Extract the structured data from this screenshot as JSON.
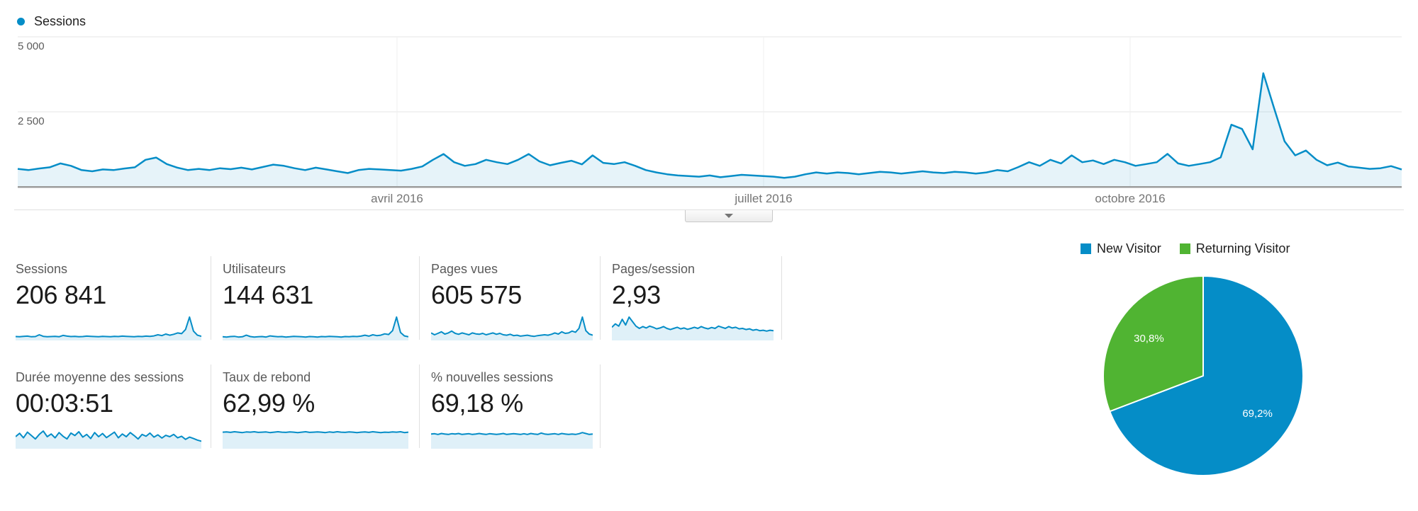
{
  "colors": {
    "blue": "#058dc7",
    "green": "#50b432",
    "area_fill": "rgba(5,141,199,0.10)",
    "spark_fill": "rgba(5,141,199,0.13)",
    "axis_line": "#9a9a9a",
    "gridline": "#e6e6e6",
    "v_gridline": "#efefef",
    "divider": "#e0e0e0",
    "pie_label_text": "#ffffff"
  },
  "timeline": {
    "legend_label": "Sessions",
    "y_axis_labels": [
      "5 000",
      "2 500"
    ],
    "x_axis_labels": [
      "avril 2016",
      "juillet 2016",
      "octobre 2016"
    ]
  },
  "expand_button": {
    "icon": "chevron-down-icon"
  },
  "cards": [
    {
      "label": "Sessions",
      "value": "206 841"
    },
    {
      "label": "Utilisateurs",
      "value": "144 631"
    },
    {
      "label": "Pages vues",
      "value": "605 575"
    },
    {
      "label": "Pages/session",
      "value": "2,93"
    },
    {
      "label": "Durée moyenne des sessions",
      "value": "00:03:51"
    },
    {
      "label": "Taux de rebond",
      "value": "62,99 %"
    },
    {
      "label": "% nouvelles sessions",
      "value": "69,18 %"
    }
  ],
  "pie_legend": [
    {
      "label": "New Visitor",
      "color": "#058dc7"
    },
    {
      "label": "Returning Visitor",
      "color": "#50b432"
    }
  ],
  "chart_data": [
    {
      "type": "area",
      "name": "sessions-over-time",
      "title": "Sessions",
      "ylim": [
        0,
        5000
      ],
      "y_ticks": [
        2500,
        5000
      ],
      "x_tick_labels": [
        "avril 2016",
        "juillet 2016",
        "octobre 2016"
      ],
      "grid": "on",
      "legend_position": "top-left",
      "series": [
        {
          "name": "Sessions",
          "values": [
            600,
            560,
            610,
            650,
            780,
            700,
            560,
            520,
            580,
            560,
            610,
            650,
            900,
            976,
            760,
            640,
            560,
            600,
            560,
            620,
            590,
            640,
            580,
            660,
            740,
            700,
            620,
            560,
            640,
            580,
            520,
            460,
            560,
            600,
            580,
            560,
            540,
            600,
            680,
            900,
            1095,
            820,
            700,
            760,
            900,
            820,
            760,
            900,
            1095,
            850,
            720,
            800,
            870,
            750,
            1050,
            800,
            760,
            820,
            700,
            560,
            480,
            420,
            380,
            360,
            340,
            380,
            320,
            360,
            400,
            380,
            360,
            340,
            300,
            340,
            420,
            480,
            440,
            480,
            460,
            420,
            460,
            500,
            480,
            440,
            480,
            520,
            480,
            460,
            500,
            480,
            440,
            480,
            560,
            520,
            660,
            820,
            700,
            900,
            780,
            1050,
            820,
            880,
            760,
            900,
            820,
            700,
            760,
            820,
            1100,
            780,
            700,
            760,
            820,
            980,
            2070,
            1930,
            1250,
            3785,
            2640,
            1520,
            1050,
            1210,
            900,
            720,
            810,
            680,
            640,
            600,
            620,
            690,
            580
          ]
        }
      ]
    },
    {
      "type": "pie",
      "name": "visitor-type",
      "legend_position": "top",
      "start_angle_deg": 0,
      "direction": "clockwise",
      "slices": [
        {
          "label": "New Visitor",
          "value": 69.2,
          "display": "69,2%",
          "color": "#058dc7"
        },
        {
          "label": "Returning Visitor",
          "value": 30.8,
          "display": "30,8%",
          "color": "#50b432"
        }
      ]
    },
    {
      "type": "area",
      "name": "spark-sessions",
      "metric": "Sessions",
      "values_norm": [
        0.14,
        0.13,
        0.15,
        0.16,
        0.13,
        0.14,
        0.22,
        0.15,
        0.13,
        0.14,
        0.15,
        0.13,
        0.19,
        0.16,
        0.14,
        0.15,
        0.13,
        0.14,
        0.16,
        0.15,
        0.14,
        0.13,
        0.15,
        0.14,
        0.13,
        0.15,
        0.14,
        0.16,
        0.15,
        0.14,
        0.13,
        0.15,
        0.14,
        0.16,
        0.15,
        0.17,
        0.22,
        0.18,
        0.25,
        0.2,
        0.24,
        0.3,
        0.27,
        0.45,
        1.0,
        0.38,
        0.2,
        0.15
      ]
    },
    {
      "type": "area",
      "name": "spark-utilisateurs",
      "metric": "Utilisateurs",
      "values_norm": [
        0.13,
        0.12,
        0.14,
        0.15,
        0.12,
        0.13,
        0.2,
        0.14,
        0.12,
        0.13,
        0.14,
        0.12,
        0.17,
        0.15,
        0.13,
        0.14,
        0.12,
        0.13,
        0.15,
        0.14,
        0.13,
        0.12,
        0.14,
        0.13,
        0.12,
        0.14,
        0.13,
        0.15,
        0.14,
        0.13,
        0.12,
        0.14,
        0.13,
        0.15,
        0.14,
        0.16,
        0.2,
        0.16,
        0.22,
        0.18,
        0.2,
        0.26,
        0.23,
        0.4,
        1.0,
        0.32,
        0.17,
        0.13
      ]
    },
    {
      "type": "area",
      "name": "spark-pages-vues",
      "metric": "Pages vues",
      "values_norm": [
        0.3,
        0.22,
        0.28,
        0.35,
        0.25,
        0.3,
        0.38,
        0.28,
        0.24,
        0.3,
        0.26,
        0.22,
        0.3,
        0.26,
        0.24,
        0.28,
        0.22,
        0.26,
        0.3,
        0.24,
        0.28,
        0.22,
        0.2,
        0.24,
        0.18,
        0.2,
        0.16,
        0.18,
        0.2,
        0.17,
        0.15,
        0.18,
        0.2,
        0.22,
        0.2,
        0.24,
        0.3,
        0.25,
        0.35,
        0.28,
        0.3,
        0.38,
        0.33,
        0.5,
        1.0,
        0.4,
        0.25,
        0.2
      ]
    },
    {
      "type": "area",
      "name": "spark-pages-session",
      "metric": "Pages/session",
      "values_norm": [
        0.55,
        0.7,
        0.6,
        0.9,
        0.65,
        1.0,
        0.8,
        0.6,
        0.5,
        0.58,
        0.52,
        0.6,
        0.55,
        0.48,
        0.52,
        0.58,
        0.5,
        0.45,
        0.5,
        0.55,
        0.48,
        0.52,
        0.46,
        0.5,
        0.55,
        0.5,
        0.58,
        0.52,
        0.48,
        0.54,
        0.5,
        0.6,
        0.55,
        0.5,
        0.58,
        0.52,
        0.55,
        0.48,
        0.5,
        0.45,
        0.48,
        0.42,
        0.45,
        0.4,
        0.42,
        0.38,
        0.42,
        0.4
      ]
    },
    {
      "type": "area",
      "name": "spark-duree",
      "metric": "Durée moyenne des sessions",
      "values_norm": [
        0.5,
        0.65,
        0.45,
        0.7,
        0.55,
        0.4,
        0.6,
        0.75,
        0.5,
        0.62,
        0.45,
        0.68,
        0.52,
        0.4,
        0.66,
        0.55,
        0.72,
        0.48,
        0.6,
        0.42,
        0.68,
        0.5,
        0.64,
        0.46,
        0.58,
        0.7,
        0.45,
        0.62,
        0.5,
        0.68,
        0.55,
        0.4,
        0.6,
        0.52,
        0.66,
        0.48,
        0.58,
        0.44,
        0.56,
        0.5,
        0.6,
        0.45,
        0.52,
        0.38,
        0.48,
        0.42,
        0.35,
        0.3
      ]
    },
    {
      "type": "area",
      "name": "spark-taux-rebond",
      "metric": "Taux de rebond",
      "values_norm": [
        0.7,
        0.71,
        0.69,
        0.72,
        0.7,
        0.68,
        0.71,
        0.7,
        0.72,
        0.69,
        0.7,
        0.71,
        0.68,
        0.7,
        0.72,
        0.7,
        0.69,
        0.71,
        0.7,
        0.68,
        0.7,
        0.72,
        0.69,
        0.7,
        0.71,
        0.7,
        0.68,
        0.71,
        0.69,
        0.72,
        0.7,
        0.69,
        0.71,
        0.7,
        0.68,
        0.7,
        0.71,
        0.69,
        0.72,
        0.7,
        0.68,
        0.7,
        0.69,
        0.71,
        0.7,
        0.72,
        0.68,
        0.7
      ]
    },
    {
      "type": "area",
      "name": "spark-nouvelles-sessions",
      "metric": "% nouvelles sessions",
      "values_norm": [
        0.62,
        0.63,
        0.6,
        0.64,
        0.62,
        0.6,
        0.63,
        0.62,
        0.64,
        0.6,
        0.62,
        0.63,
        0.6,
        0.62,
        0.64,
        0.62,
        0.6,
        0.63,
        0.62,
        0.6,
        0.62,
        0.64,
        0.6,
        0.62,
        0.63,
        0.62,
        0.6,
        0.63,
        0.6,
        0.64,
        0.62,
        0.6,
        0.66,
        0.62,
        0.6,
        0.62,
        0.63,
        0.6,
        0.64,
        0.62,
        0.6,
        0.62,
        0.6,
        0.63,
        0.68,
        0.64,
        0.6,
        0.62
      ]
    }
  ]
}
